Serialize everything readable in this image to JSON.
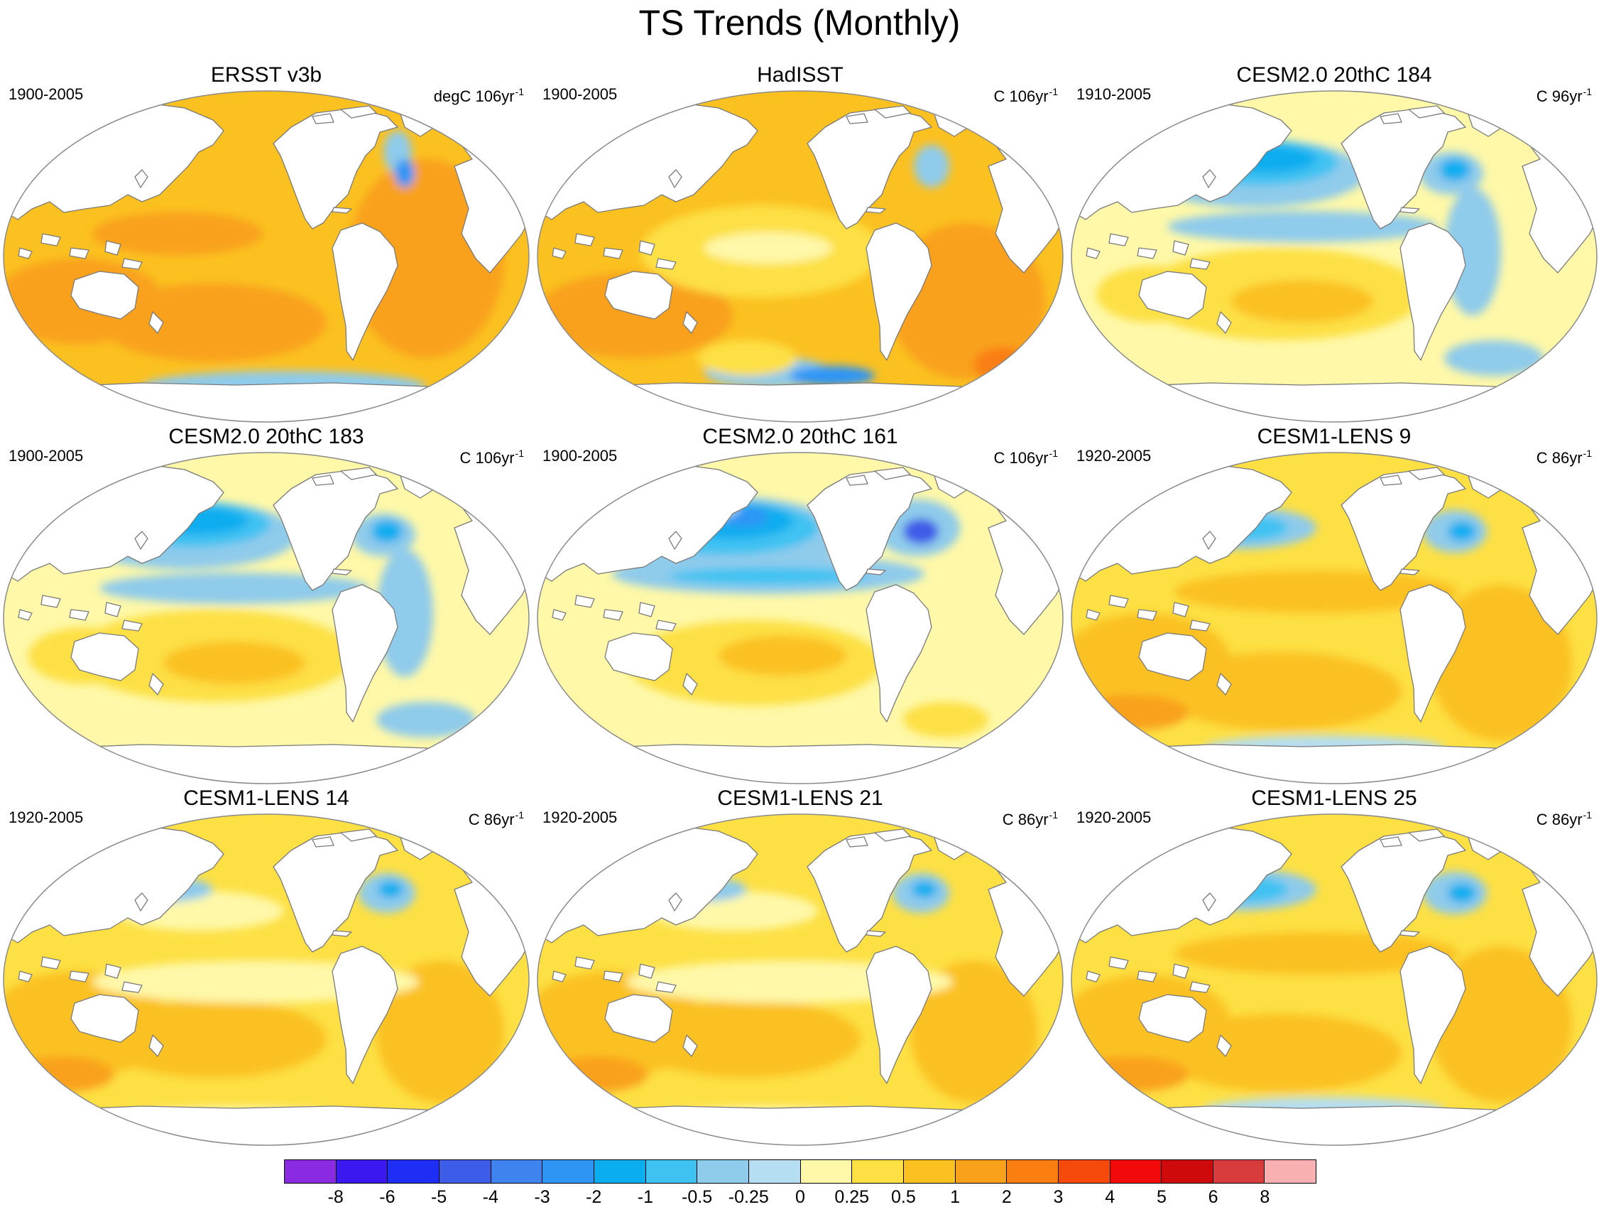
{
  "title": "TS Trends (Monthly)",
  "colors": {
    "ocean_base": "#fbc120",
    "land": "#ffffff",
    "coast": "#7a7a7a",
    "border": "#8a8a8a"
  },
  "panels": [
    {
      "title": "ERSST v3b",
      "years": "1900-2005",
      "units": "degC 106yr",
      "units_sup": "-1",
      "pattern": "warm_strong"
    },
    {
      "title": "HadISST",
      "years": "1900-2005",
      "units": "C 106yr",
      "units_sup": "-1",
      "pattern": "warm_strong_patchy"
    },
    {
      "title": "CESM2.0 20thC 184",
      "years": "1910-2005",
      "units": "C 96yr",
      "units_sup": "-1",
      "pattern": "cool_pacific"
    },
    {
      "title": "CESM2.0 20thC 183",
      "years": "1900-2005",
      "units": "C 106yr",
      "units_sup": "-1",
      "pattern": "cool_pacific"
    },
    {
      "title": "CESM2.0 20thC 161",
      "years": "1900-2005",
      "units": "C 106yr",
      "units_sup": "-1",
      "pattern": "cool_pacific_strong"
    },
    {
      "title": "CESM1-LENS 9",
      "years": "1920-2005",
      "units": "C 86yr",
      "units_sup": "-1",
      "pattern": "warm_moderate"
    },
    {
      "title": "CESM1-LENS 14",
      "years": "1920-2005",
      "units": "C 86yr",
      "units_sup": "-1",
      "pattern": "warm_light"
    },
    {
      "title": "CESM1-LENS 21",
      "years": "1920-2005",
      "units": "C 86yr",
      "units_sup": "-1",
      "pattern": "warm_light"
    },
    {
      "title": "CESM1-LENS 25",
      "years": "1920-2005",
      "units": "C 86yr",
      "units_sup": "-1",
      "pattern": "warm_moderate"
    }
  ],
  "colorbar": {
    "colors": [
      "#8a2be2",
      "#3c18f0",
      "#1e2ef5",
      "#3d5ce8",
      "#3f83ef",
      "#2f95f5",
      "#0aadf0",
      "#3fc2f2",
      "#8fcbeb",
      "#b5def2",
      "#fef8a8",
      "#fde044",
      "#fbc120",
      "#f9a11a",
      "#fa7e12",
      "#f54a0c",
      "#f20a0a",
      "#cf0a0a",
      "#d93c3c",
      "#f9b0b0"
    ],
    "labels": [
      "-8",
      "-6",
      "-5",
      "-4",
      "-3",
      "-2",
      "-1",
      "-0.5",
      "-0.25",
      "0",
      "0.25",
      "0.5",
      "1",
      "2",
      "3",
      "4",
      "5",
      "6",
      "8"
    ]
  }
}
